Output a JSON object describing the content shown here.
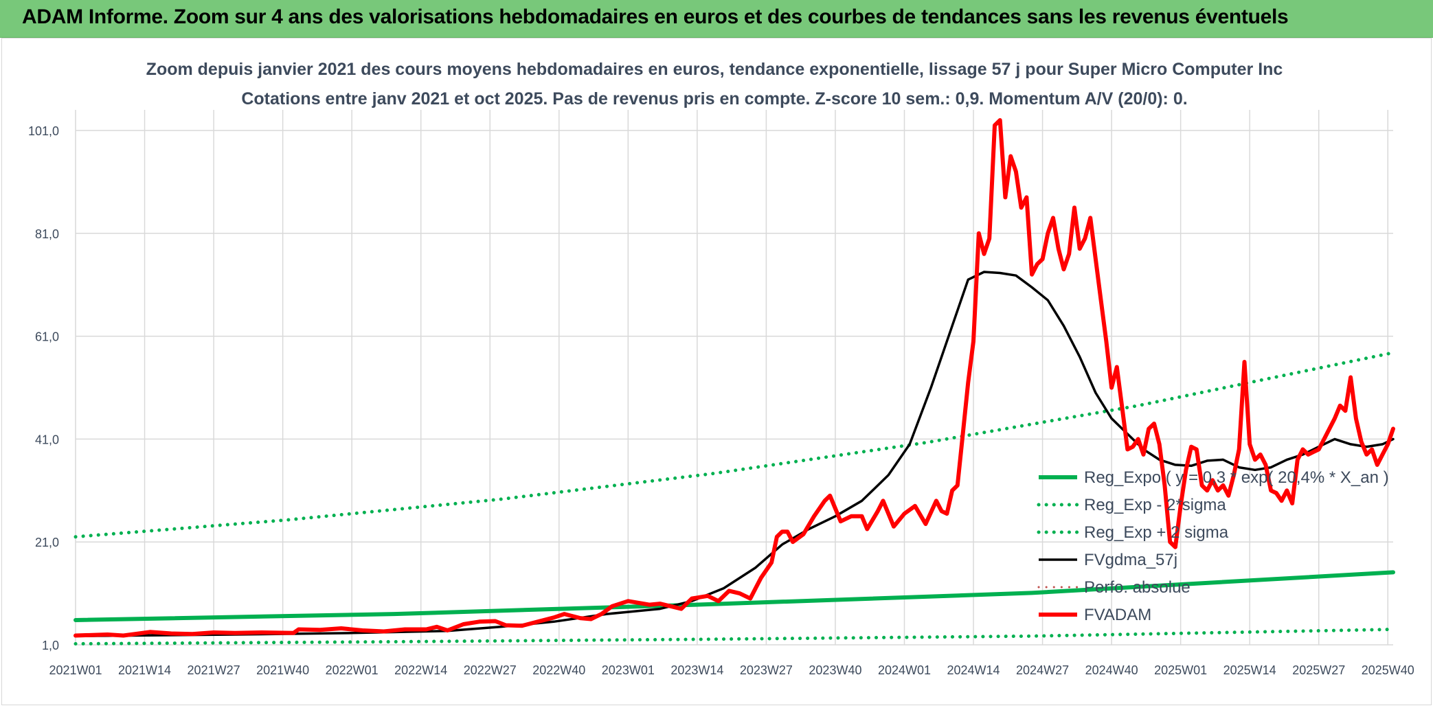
{
  "banner": {
    "title": "ADAM Informe. Zoom sur 4 ans des valorisations hebdomadaires en euros et des courbes de tendances sans les revenus éventuels"
  },
  "colors": {
    "banner": "#78c87a",
    "trend": "#00b050",
    "fvadam": "#ff0000",
    "fvgdma": "#000000",
    "grid": "#d9d9d9",
    "text": "#3d4a5c"
  },
  "chart_data": {
    "type": "line",
    "title": "Zoom depuis janvier 2021 des cours moyens hebdomadaires en euros, tendance exponentielle, lissage 57 j pour Super Micro Computer Inc",
    "subtitle": "Cotations entre janv 2021 et oct 2025. Pas de revenus pris en compte. Z-score 10 sem.: 0,9. Momentum A/V (20/0): 0.",
    "xlabel": "",
    "ylabel": "",
    "x_range": [
      0,
      248
    ],
    "ylim": [
      1,
      101
    ],
    "yticks": [
      1,
      21,
      41,
      61,
      81,
      101
    ],
    "ytick_labels": [
      "1,0",
      "21,0",
      "41,0",
      "61,0",
      "81,0",
      "101,0"
    ],
    "xticks": [
      0,
      13,
      26,
      39,
      52,
      65,
      78,
      91,
      104,
      117,
      130,
      143,
      156,
      169,
      182,
      195,
      208,
      221,
      234,
      247
    ],
    "xtick_labels": [
      "2021W01",
      "2021W14",
      "2021W27",
      "2021W40",
      "2022W01",
      "2022W14",
      "2022W27",
      "2022W40",
      "2023W01",
      "2023W14",
      "2023W27",
      "2023W40",
      "2024W01",
      "2024W14",
      "2024W27",
      "2024W40",
      "2025W01",
      "2025W14",
      "2025W27",
      "2025W40"
    ],
    "legend_position": "right",
    "series": [
      {
        "name": "Reg_Expo ( y = 0,3 * exp( 20,4% *  X_an )",
        "style": "solid",
        "color": "#00b050",
        "width": 6,
        "points": [
          [
            0,
            5.8
          ],
          [
            60,
            7.0
          ],
          [
            120,
            8.9
          ],
          [
            180,
            11.1
          ],
          [
            248,
            15.1
          ]
        ]
      },
      {
        "name": "Reg_Exp - 2*sigma",
        "style": "dotted",
        "color": "#00b050",
        "width": 5,
        "points": [
          [
            0,
            1.2
          ],
          [
            60,
            1.6
          ],
          [
            120,
            2.1
          ],
          [
            180,
            2.7
          ],
          [
            248,
            4.0
          ]
        ]
      },
      {
        "name": "Reg_Exp + 2 sigma",
        "style": "dotted",
        "color": "#00b050",
        "width": 5,
        "points": [
          [
            0,
            22.0
          ],
          [
            40,
            25.3
          ],
          [
            80,
            29.3
          ],
          [
            120,
            34.3
          ],
          [
            160,
            40.3
          ],
          [
            200,
            47.5
          ],
          [
            248,
            57.8
          ]
        ]
      },
      {
        "name": "FVgdma_57j",
        "style": "solid",
        "color": "#000000",
        "width": 3.5,
        "points": [
          [
            0,
            2.7
          ],
          [
            30,
            3.0
          ],
          [
            52,
            3.3
          ],
          [
            70,
            3.7
          ],
          [
            80,
            4.5
          ],
          [
            90,
            5.5
          ],
          [
            100,
            7.0
          ],
          [
            110,
            8.0
          ],
          [
            116,
            9.5
          ],
          [
            122,
            12.0
          ],
          [
            128,
            16.0
          ],
          [
            133,
            20.5
          ],
          [
            138,
            23.5
          ],
          [
            143,
            26.0
          ],
          [
            148,
            29.0
          ],
          [
            153,
            34.0
          ],
          [
            157,
            40.0
          ],
          [
            161,
            51.0
          ],
          [
            165,
            63.0
          ],
          [
            168,
            72.0
          ],
          [
            171,
            73.5
          ],
          [
            174,
            73.3
          ],
          [
            177,
            72.8
          ],
          [
            180,
            70.5
          ],
          [
            183,
            68.0
          ],
          [
            186,
            63.0
          ],
          [
            189,
            57.0
          ],
          [
            192,
            50.0
          ],
          [
            195,
            45.0
          ],
          [
            198,
            42.0
          ],
          [
            201,
            39.0
          ],
          [
            204,
            37.0
          ],
          [
            207,
            36.0
          ],
          [
            210,
            35.8
          ],
          [
            213,
            36.8
          ],
          [
            216,
            37.0
          ],
          [
            219,
            35.5
          ],
          [
            222,
            35.0
          ],
          [
            225,
            35.5
          ],
          [
            228,
            37.0
          ],
          [
            231,
            38.0
          ],
          [
            234,
            39.5
          ],
          [
            237,
            41.0
          ],
          [
            240,
            40.0
          ],
          [
            243,
            39.5
          ],
          [
            246,
            40.0
          ],
          [
            248,
            41.0
          ]
        ]
      },
      {
        "name": "Perfo. absolue",
        "style": "dotted",
        "color": "#c0504d",
        "width": 3,
        "points": []
      },
      {
        "name": "FVADAM",
        "style": "solid",
        "color": "#ff0000",
        "width": 6,
        "points": [
          [
            0,
            2.8
          ],
          [
            6,
            3.0
          ],
          [
            9,
            2.8
          ],
          [
            14,
            3.5
          ],
          [
            18,
            3.2
          ],
          [
            22,
            3.1
          ],
          [
            26,
            3.4
          ],
          [
            30,
            3.3
          ],
          [
            35,
            3.4
          ],
          [
            41,
            3.3
          ],
          [
            42,
            4.0
          ],
          [
            46,
            3.9
          ],
          [
            50,
            4.2
          ],
          [
            54,
            3.8
          ],
          [
            58,
            3.6
          ],
          [
            62,
            4.0
          ],
          [
            66,
            4.0
          ],
          [
            68,
            4.5
          ],
          [
            70,
            3.8
          ],
          [
            73,
            5.0
          ],
          [
            76,
            5.5
          ],
          [
            79,
            5.6
          ],
          [
            81,
            4.8
          ],
          [
            84,
            4.7
          ],
          [
            87,
            5.5
          ],
          [
            90,
            6.3
          ],
          [
            92,
            7.0
          ],
          [
            95,
            6.2
          ],
          [
            97,
            6.0
          ],
          [
            99,
            7.0
          ],
          [
            101,
            8.5
          ],
          [
            104,
            9.5
          ],
          [
            108,
            8.8
          ],
          [
            110,
            9.0
          ],
          [
            114,
            8.0
          ],
          [
            116,
            10.0
          ],
          [
            119,
            10.5
          ],
          [
            121,
            9.5
          ],
          [
            123,
            11.5
          ],
          [
            125,
            11.0
          ],
          [
            127,
            10.0
          ],
          [
            128,
            12.0
          ],
          [
            129,
            14.0
          ],
          [
            131,
            17.0
          ],
          [
            132,
            22.0
          ],
          [
            133,
            23.0
          ],
          [
            134,
            23.0
          ],
          [
            135,
            21.0
          ],
          [
            137,
            22.5
          ],
          [
            139,
            26.0
          ],
          [
            141,
            29.0
          ],
          [
            142,
            30.0
          ],
          [
            144,
            25.0
          ],
          [
            146,
            26.0
          ],
          [
            148,
            26.0
          ],
          [
            149,
            23.5
          ],
          [
            151,
            27.0
          ],
          [
            152,
            29.0
          ],
          [
            154,
            24.0
          ],
          [
            156,
            26.5
          ],
          [
            158,
            28.0
          ],
          [
            160,
            24.5
          ],
          [
            162,
            29.0
          ],
          [
            163,
            27.0
          ],
          [
            164,
            26.5
          ],
          [
            165,
            31.0
          ],
          [
            166,
            32.0
          ],
          [
            167,
            42.0
          ],
          [
            168,
            52.0
          ],
          [
            169,
            60.0
          ],
          [
            170,
            81.0
          ],
          [
            171,
            77.0
          ],
          [
            172,
            80.0
          ],
          [
            173,
            102.0
          ],
          [
            174,
            103.0
          ],
          [
            175,
            88.0
          ],
          [
            176,
            96.0
          ],
          [
            177,
            93.0
          ],
          [
            178,
            86.0
          ],
          [
            179,
            88.0
          ],
          [
            180,
            73.0
          ],
          [
            181,
            75.0
          ],
          [
            182,
            76.0
          ],
          [
            183,
            81.0
          ],
          [
            184,
            84.0
          ],
          [
            185,
            78.0
          ],
          [
            186,
            74.0
          ],
          [
            187,
            77.0
          ],
          [
            188,
            86.0
          ],
          [
            189,
            78.0
          ],
          [
            190,
            80.0
          ],
          [
            191,
            84.0
          ],
          [
            192,
            76.0
          ],
          [
            193,
            68.0
          ],
          [
            194,
            60.0
          ],
          [
            195,
            51.0
          ],
          [
            196,
            55.0
          ],
          [
            197,
            47.0
          ],
          [
            198,
            39.0
          ],
          [
            199,
            39.5
          ],
          [
            200,
            41.0
          ],
          [
            201,
            38.0
          ],
          [
            202,
            43.0
          ],
          [
            203,
            44.0
          ],
          [
            204,
            40.0
          ],
          [
            205,
            32.0
          ],
          [
            206,
            21.0
          ],
          [
            207,
            20.0
          ],
          [
            208,
            28.0
          ],
          [
            209,
            35.0
          ],
          [
            210,
            39.5
          ],
          [
            211,
            39.0
          ],
          [
            212,
            32.0
          ],
          [
            213,
            31.0
          ],
          [
            214,
            33.0
          ],
          [
            215,
            31.0
          ],
          [
            216,
            32.0
          ],
          [
            217,
            30.0
          ],
          [
            218,
            34.0
          ],
          [
            219,
            39.0
          ],
          [
            220,
            56.0
          ],
          [
            221,
            40.0
          ],
          [
            222,
            37.0
          ],
          [
            223,
            38.0
          ],
          [
            224,
            36.0
          ],
          [
            225,
            31.0
          ],
          [
            226,
            30.5
          ],
          [
            227,
            29.0
          ],
          [
            228,
            31.0
          ],
          [
            229,
            28.5
          ],
          [
            230,
            37.0
          ],
          [
            231,
            39.0
          ],
          [
            232,
            38.0
          ],
          [
            233,
            38.5
          ],
          [
            234,
            39.0
          ],
          [
            235,
            41.0
          ],
          [
            236,
            43.0
          ],
          [
            237,
            45.0
          ],
          [
            238,
            47.5
          ],
          [
            239,
            46.5
          ],
          [
            240,
            53.0
          ],
          [
            241,
            45.0
          ],
          [
            242,
            40.5
          ],
          [
            243,
            38.0
          ],
          [
            244,
            39.0
          ],
          [
            245,
            36.0
          ],
          [
            246,
            38.0
          ],
          [
            247,
            40.0
          ],
          [
            248,
            43.0
          ]
        ]
      }
    ]
  }
}
